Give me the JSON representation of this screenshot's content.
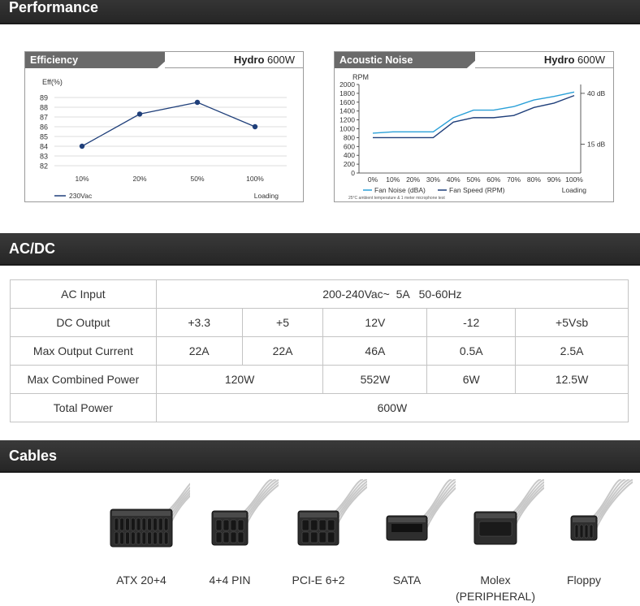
{
  "sections": {
    "performance": "Performance",
    "acdc": "AC/DC",
    "cables": "Cables"
  },
  "efficiency_chart": {
    "tab": "Efficiency",
    "model_brand": "Hydro",
    "model_watt": "600W",
    "legend_label": "230Vac",
    "loading_label": "Loading"
  },
  "noise_chart": {
    "tab": "Acoustic Noise",
    "model_brand": "Hydro",
    "model_watt": "600W",
    "legend_noise": "Fan Noise (dBA)",
    "legend_speed": "Fan Speed (RPM)",
    "loading_label": "Loading",
    "footnote": "25°C ambient temperature & 1 meter microphone test"
  },
  "chart_data": [
    {
      "type": "line",
      "title": "Efficiency",
      "ylabel": "Eff(%)",
      "xlabel": "Loading",
      "categories": [
        "10%",
        "20%",
        "50%",
        "100%"
      ],
      "series": [
        {
          "name": "230Vac",
          "values": [
            84,
            87.3,
            88.5,
            86
          ],
          "color": "#1f3f7a"
        }
      ],
      "ylim": [
        82,
        89
      ],
      "yticks": [
        "82",
        "83",
        "84",
        "85",
        "86",
        "87",
        "88",
        "89"
      ],
      "grid": true
    },
    {
      "type": "line",
      "title": "Acoustic Noise",
      "ylabel": "RPM",
      "xlabel": "Loading",
      "categories": [
        "0%",
        "10%",
        "20%",
        "30%",
        "40%",
        "50%",
        "60%",
        "70%",
        "80%",
        "90%",
        "100%"
      ],
      "series": [
        {
          "name": "Fan Noise (dBA)",
          "values": [
            900,
            930,
            930,
            930,
            1250,
            1420,
            1420,
            1500,
            1650,
            1730,
            1830
          ],
          "color": "#2aa0d8"
        },
        {
          "name": "Fan Speed (RPM)",
          "values": [
            800,
            800,
            800,
            800,
            1150,
            1250,
            1250,
            1300,
            1480,
            1580,
            1750
          ],
          "color": "#1f3f7a"
        }
      ],
      "ylim": [
        0,
        2000
      ],
      "yticks": [
        "0",
        "200",
        "400",
        "600",
        "800",
        "1000",
        "1200",
        "1400",
        "1600",
        "1800",
        "2000"
      ],
      "right_axis_labels": [
        {
          "label": "40 dB",
          "value": 1800
        },
        {
          "label": "15 dB",
          "value": 650
        }
      ]
    }
  ],
  "table": {
    "ac_input_label": "AC Input",
    "ac_input_value": "200-240Vac~  5A   50-60Hz",
    "dc_output_label": "DC Output",
    "dc_outputs": [
      "+3.3",
      "+5",
      "12V",
      "-12",
      "+5Vsb"
    ],
    "max_current_label": "Max Output Current",
    "max_currents": [
      "22A",
      "22A",
      "46A",
      "0.5A",
      "2.5A"
    ],
    "max_combined_label": "Max Combined Power",
    "max_combined": [
      "120W",
      "552W",
      "6W",
      "12.5W"
    ],
    "total_label": "Total Power",
    "total_value": "600W"
  },
  "cables": [
    {
      "label": "ATX 20+4",
      "sub": ""
    },
    {
      "label": "4+4 PIN",
      "sub": ""
    },
    {
      "label": "PCI-E 6+2",
      "sub": ""
    },
    {
      "label": "SATA",
      "sub": ""
    },
    {
      "label": "Molex",
      "sub": "(PERIPHERAL)"
    },
    {
      "label": "Floppy",
      "sub": ""
    }
  ]
}
